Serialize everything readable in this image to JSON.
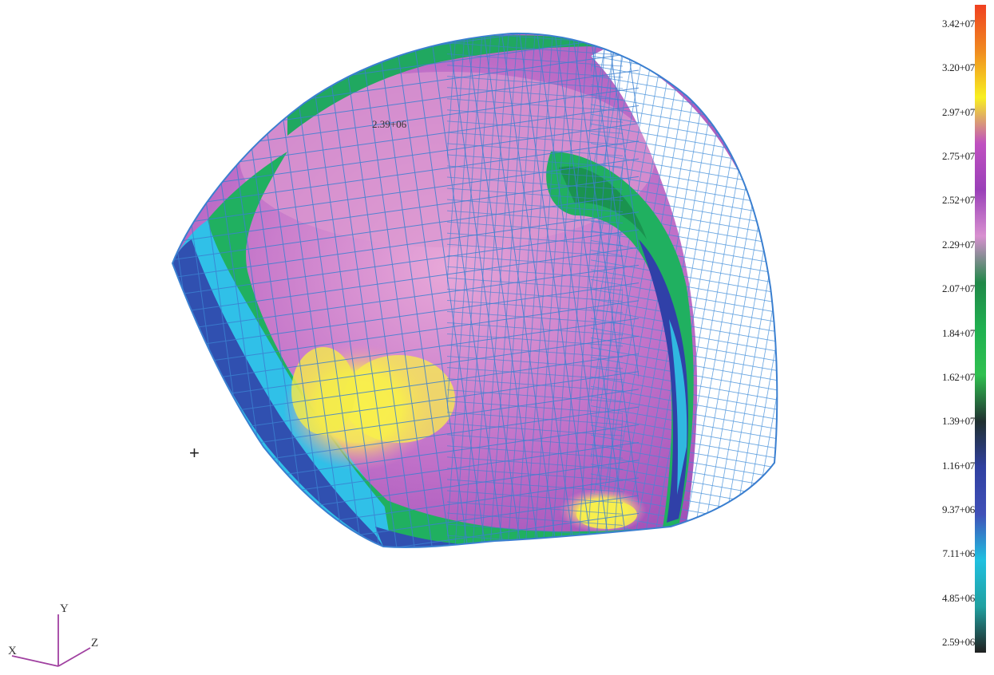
{
  "viewport": {
    "probe_value": "2.39+06",
    "cursor_glyph": "+"
  },
  "axes_triad": {
    "x_label": "X",
    "y_label": "Y",
    "z_label": "Z"
  },
  "legend": {
    "labels": [
      "3.42+07",
      "3.20+07",
      "2.97+07",
      "2.75+07",
      "2.52+07",
      "2.29+07",
      "2.07+07",
      "1.84+07",
      "1.62+07",
      "1.39+07",
      "1.16+07",
      "9.37+06",
      "7.11+06",
      "4.85+06",
      "2.59+06"
    ],
    "color_stops": [
      "#f04020",
      "#f08a20",
      "#f8f020",
      "#c050c0",
      "#9a40b8",
      "#d890d0",
      "#208848",
      "#20b050",
      "#30c050",
      "#203030",
      "#3040a0",
      "#4050b8",
      "#20c0e0",
      "#20a0a0",
      "#202020"
    ]
  },
  "colors": {
    "mesh_line": "#3a7fd0",
    "magenta": "#b060c0",
    "pink": "#e49ad0",
    "green": "#20b060",
    "cyan": "#30c0e8",
    "blue": "#3050b0",
    "yellow": "#f4f040",
    "axis": "#a040a0"
  }
}
